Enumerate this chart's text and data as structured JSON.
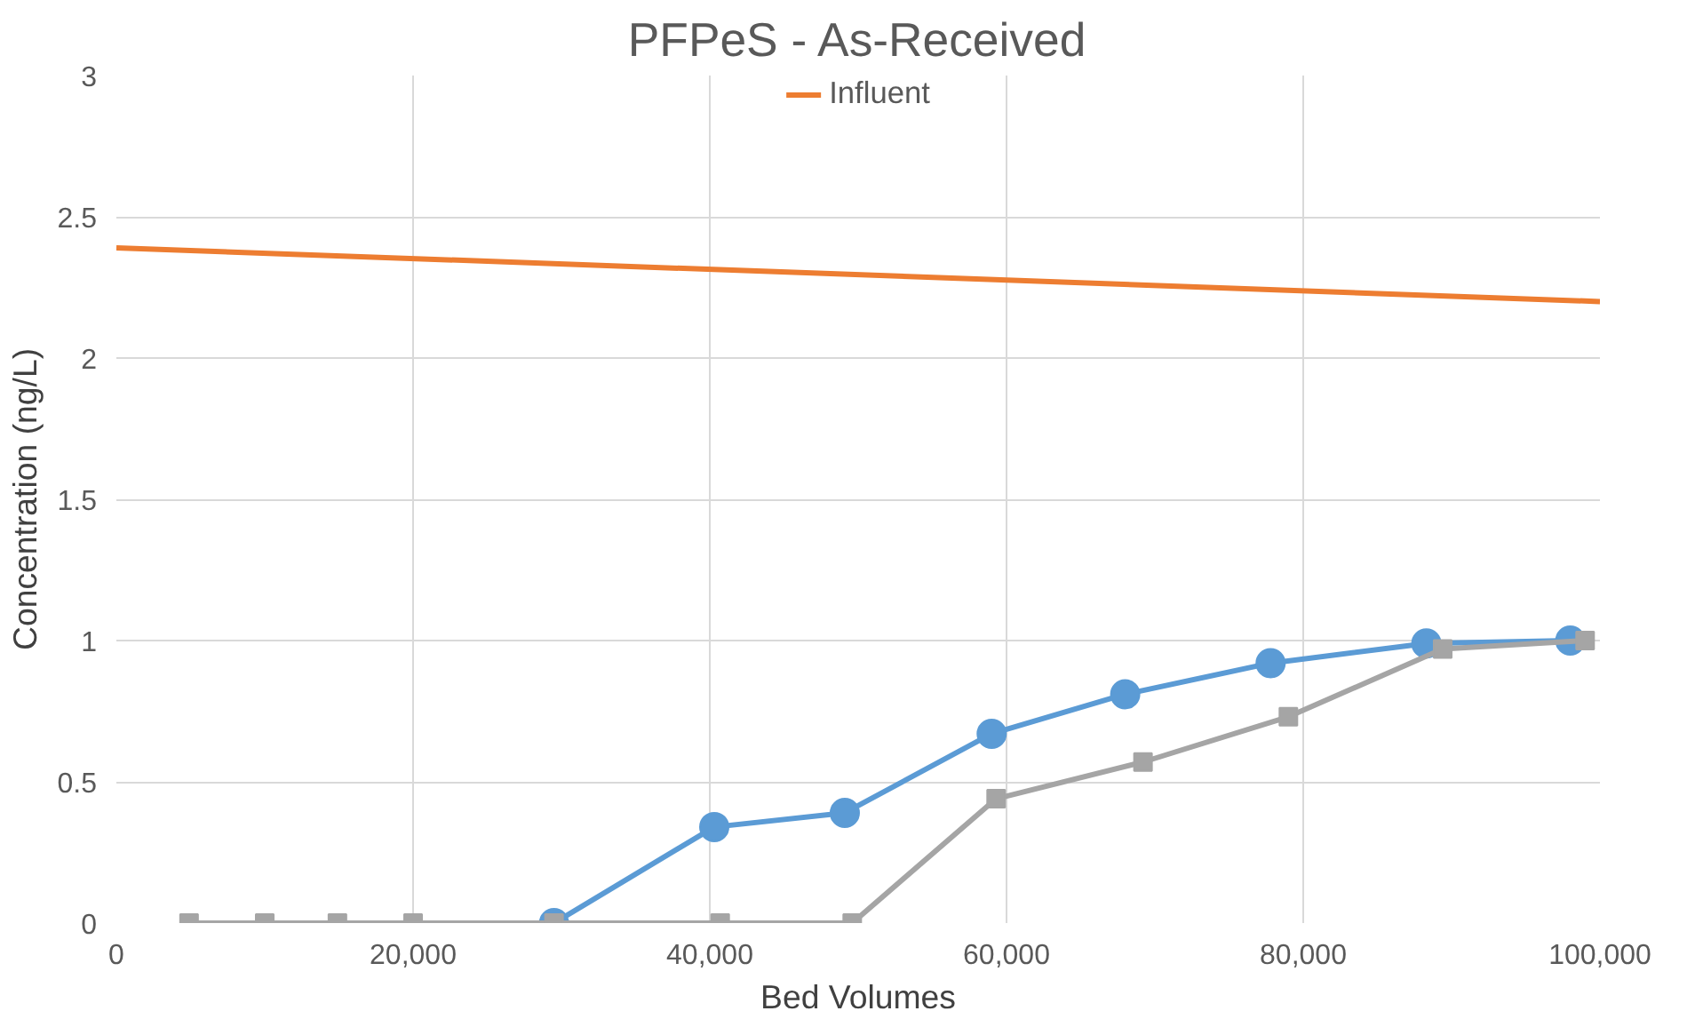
{
  "chart_data": {
    "type": "line",
    "title": "PFPeS - As-Received",
    "xlabel": "Bed Volumes",
    "ylabel": "Concentration (ng/L)",
    "xlim": [
      0,
      100000
    ],
    "xticks": [
      {
        "value": 0,
        "label": "0"
      },
      {
        "value": 20000,
        "label": "20,000"
      },
      {
        "value": 40000,
        "label": "40,000"
      },
      {
        "value": 60000,
        "label": "60,000"
      },
      {
        "value": 80000,
        "label": "80,000"
      },
      {
        "value": 100000,
        "label": "100,000"
      }
    ],
    "ylim": [
      0,
      3
    ],
    "yticks": [
      0,
      0.5,
      1,
      1.5,
      2,
      2.5,
      3
    ],
    "grid": true,
    "legend": "top",
    "series": [
      {
        "color": "#5b9bd5",
        "marker": "circle",
        "x": [
          29500,
          40300,
          49100,
          59000,
          68000,
          77800,
          88300,
          98000
        ],
        "values": [
          0,
          0.34,
          0.39,
          0.67,
          0.81,
          0.92,
          0.99,
          1.0
        ]
      },
      {
        "name": "Influent",
        "color": "#ed7d31",
        "marker": "none",
        "x": [
          0,
          100000
        ],
        "values": [
          2.39,
          2.2
        ]
      },
      {
        "color": "#a5a5a5",
        "marker": "square",
        "x": [
          4900,
          10000,
          14900,
          20000,
          29500,
          40700,
          49600,
          59300,
          69200,
          79000,
          89400,
          99000
        ],
        "values": [
          0,
          0,
          0,
          0,
          0,
          0,
          0,
          0.44,
          0.57,
          0.73,
          0.97,
          1.0
        ]
      }
    ]
  }
}
